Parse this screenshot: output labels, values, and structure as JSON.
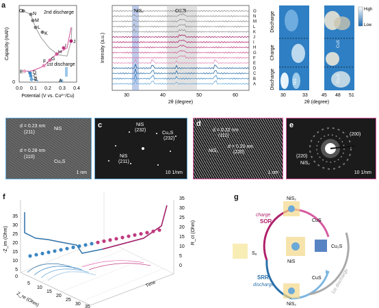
{
  "panel_a": {
    "tag": "a",
    "charge_discharge": {
      "ylabel": "Capacity (mAh)",
      "xlabel": "Potential (V vs. Cu²⁺/Cu)",
      "xticks": [
        "0.0",
        "0.1",
        "0.2",
        "0.3",
        "0.4"
      ],
      "yticks": [
        "0",
        "1",
        "2",
        "3",
        "4"
      ],
      "label_2nd": "2nd discharge",
      "label_1st": "1st discharge",
      "points": [
        "O",
        "N",
        "M",
        "L",
        "K",
        "J",
        "I",
        "H",
        "G",
        "F",
        "E",
        "D",
        "C",
        "B",
        "A"
      ]
    },
    "xrd": {
      "ylabel": "Intensity (a.u.)",
      "xlabel": "2θ (degree)",
      "xticks": [
        "30",
        "40",
        "50",
        "60"
      ],
      "nis2_label": "NiS₂",
      "cu2s_label": "Cu₂S",
      "curve_labels": [
        "O",
        "N",
        "M",
        "L",
        "K",
        "J",
        "I",
        "H",
        "G",
        "F",
        "E",
        "D",
        "C",
        "B",
        "A"
      ]
    },
    "contour": {
      "row_labels": [
        "Discharge",
        "Charge",
        "Discharge"
      ],
      "left_xticks": [
        "30",
        "33"
      ],
      "right_xticks": [
        "45",
        "48",
        "51"
      ],
      "xlabel": "2θ (degree)",
      "left_labels": [
        "NiS₂",
        "NiS"
      ],
      "right_labels": [
        "CuS",
        "Cu₂S"
      ],
      "legend_high": "High",
      "legend_low": "Low"
    }
  },
  "panel_b": {
    "tag": "b",
    "text1": "d = 0.23 nm",
    "text1b": "(211)",
    "text1c": "NiS",
    "text2": "d = 0.28 nm",
    "text2b": "(110)",
    "text2c": "Cu₂S",
    "scale": "1 nm"
  },
  "panel_c": {
    "tag": "c",
    "nis_232": "NiS",
    "nis_232b": "(232)",
    "cu2s": "Cu₂S",
    "cu2s_b": "(232)",
    "nis_211": "NiS",
    "nis_211b": "(211)",
    "scale": "10 1/nm"
  },
  "panel_d": {
    "tag": "d",
    "text1": "d = 0.32 nm",
    "text1b": "(111)",
    "text1c": "NiS₂",
    "text2": "d = 0.20 nm",
    "text2b": "(220)",
    "scale": "1 nm"
  },
  "panel_e": {
    "tag": "e",
    "l200": "(200)",
    "l220": "(220)",
    "nis2": "NiS₂",
    "scale": "10 1/nm"
  },
  "panel_f": {
    "tag": "f",
    "yaxis_left": "-Z_im (Ohm)",
    "xaxis": "Z_re (Ohm)",
    "rct": "R_ct (Ohm)",
    "time": "Time",
    "zim_ticks": [
      "35",
      "30",
      "25",
      "20",
      "15",
      "10",
      "5",
      "0"
    ],
    "zre_ticks": [
      "5",
      "10",
      "15",
      "20",
      "25",
      "30",
      "35"
    ],
    "rct_ticks": [
      "35",
      "30",
      "25",
      "20",
      "15",
      "10",
      "5",
      "0"
    ]
  },
  "panel_g": {
    "tag": "g",
    "top": "NiS₂",
    "left": "S₈",
    "bottom": "NiS₂",
    "mid_top": "CuS",
    "mid_right": "Cu₂S",
    "mid_bottom": "CuS",
    "center": "NiS",
    "sor": "SOR",
    "charge": "charge",
    "srr": "SRR",
    "discharge": "discharge",
    "discharge_1st": "1st discharge"
  },
  "colors": {
    "blue": "#2a6fa8",
    "magenta": "#b0206a",
    "gray": "#888888",
    "light_blue": "#7db6e0",
    "pink": "#e26bb0"
  }
}
